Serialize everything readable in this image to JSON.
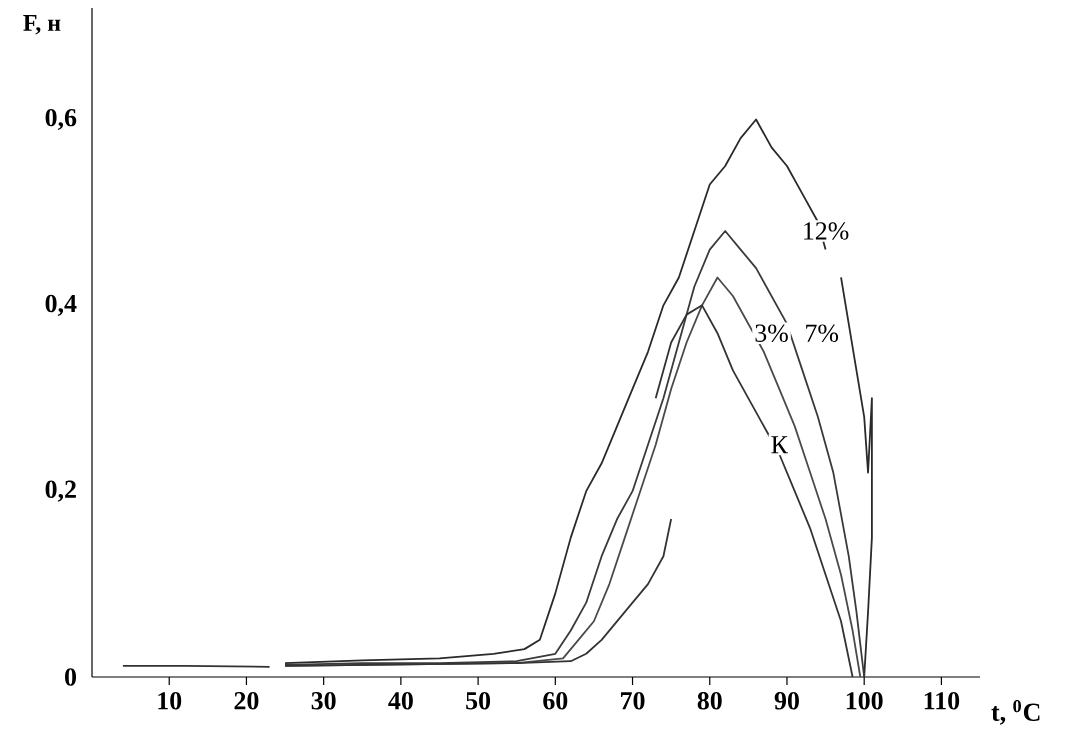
{
  "chart_data": {
    "type": "line",
    "xlabel": "t, $^{0}$C",
    "ylabel": "F, н",
    "xlim": [
      0,
      115
    ],
    "ylim": [
      0,
      0.72
    ],
    "xticks": [
      10,
      20,
      30,
      40,
      50,
      60,
      70,
      80,
      90,
      100,
      110
    ],
    "yticks": [
      0,
      {
        "value": 0.2,
        "label": "0,2"
      },
      {
        "value": 0.4,
        "label": "0,4"
      },
      {
        "value": 0.6,
        "label": "0,6"
      }
    ],
    "grid": false,
    "marker": "none",
    "line_style": "solid",
    "series": [
      {
        "color": "#2a2a2a",
        "x": [
          25,
          35,
          45,
          52,
          56,
          58,
          60,
          62,
          64,
          66,
          68,
          70,
          72,
          74,
          76,
          78,
          80,
          82,
          84,
          86,
          88,
          90,
          92,
          94,
          95,
          96,
          97,
          98,
          99,
          100,
          100.5,
          101,
          101,
          100.5,
          100
        ],
        "values": [
          0.015,
          0.018,
          0.02,
          0.025,
          0.03,
          0.04,
          0.09,
          0.15,
          0.2,
          0.23,
          0.27,
          0.31,
          0.35,
          0.4,
          0.43,
          0.48,
          0.53,
          0.55,
          0.58,
          0.6,
          0.57,
          0.55,
          0.52,
          0.49,
          0.46,
          null,
          0.43,
          0.38,
          0.33,
          0.28,
          0.22,
          0.3,
          0.15,
          0.07,
          0
        ]
      },
      {
        "color": "#3a3a3a",
        "x": [
          25,
          35,
          45,
          55,
          60,
          62,
          64,
          66,
          68,
          70,
          72,
          74,
          76,
          78,
          80,
          82,
          84,
          86,
          88,
          90,
          92,
          94,
          96,
          98,
          99,
          100
        ],
        "values": [
          0.013,
          0.015,
          0.015,
          0.017,
          0.025,
          0.05,
          0.08,
          0.13,
          0.17,
          0.2,
          0.25,
          0.3,
          0.36,
          0.42,
          0.46,
          0.48,
          0.46,
          0.44,
          0.41,
          0.38,
          0.33,
          0.28,
          0.22,
          0.13,
          0.07,
          0
        ]
      },
      {
        "color": "#4a4a4a",
        "x": [
          25,
          35,
          45,
          55,
          61,
          63,
          65,
          67,
          69,
          71,
          73,
          75,
          77,
          79,
          81,
          83,
          85,
          87,
          89,
          91,
          93,
          95,
          97,
          98.5,
          99.5
        ],
        "values": [
          0.012,
          0.013,
          0.014,
          0.015,
          0.02,
          0.04,
          0.06,
          0.1,
          0.15,
          0.2,
          0.25,
          0.31,
          0.36,
          0.4,
          0.43,
          0.41,
          0.38,
          0.35,
          0.31,
          0.27,
          0.22,
          0.17,
          0.11,
          0.05,
          0
        ]
      },
      {
        "color": "#333333",
        "x": [
          4,
          12,
          23,
          null,
          25,
          35,
          45,
          55,
          62,
          64,
          66,
          68,
          70,
          72,
          74,
          75,
          null,
          73,
          75,
          77,
          79,
          81,
          83,
          85,
          87,
          89,
          91,
          93,
          95,
          97,
          98.5
        ],
        "values": [
          0.012,
          0.012,
          0.011,
          null,
          0.012,
          0.013,
          0.014,
          0.015,
          0.017,
          0.025,
          0.04,
          0.06,
          0.08,
          0.1,
          0.13,
          0.17,
          null,
          0.3,
          0.36,
          0.39,
          0.4,
          0.37,
          0.33,
          0.3,
          0.27,
          0.24,
          0.2,
          0.16,
          0.11,
          0.06,
          0
        ]
      }
    ],
    "annotations": [
      {
        "text": "12%",
        "x": 95,
        "y": 0.48
      },
      {
        "text": "7%",
        "x": 94.5,
        "y": 0.37
      },
      {
        "text": "3%",
        "x": 88,
        "y": 0.37
      },
      {
        "text": "К",
        "x": 89,
        "y": 0.25
      }
    ]
  }
}
